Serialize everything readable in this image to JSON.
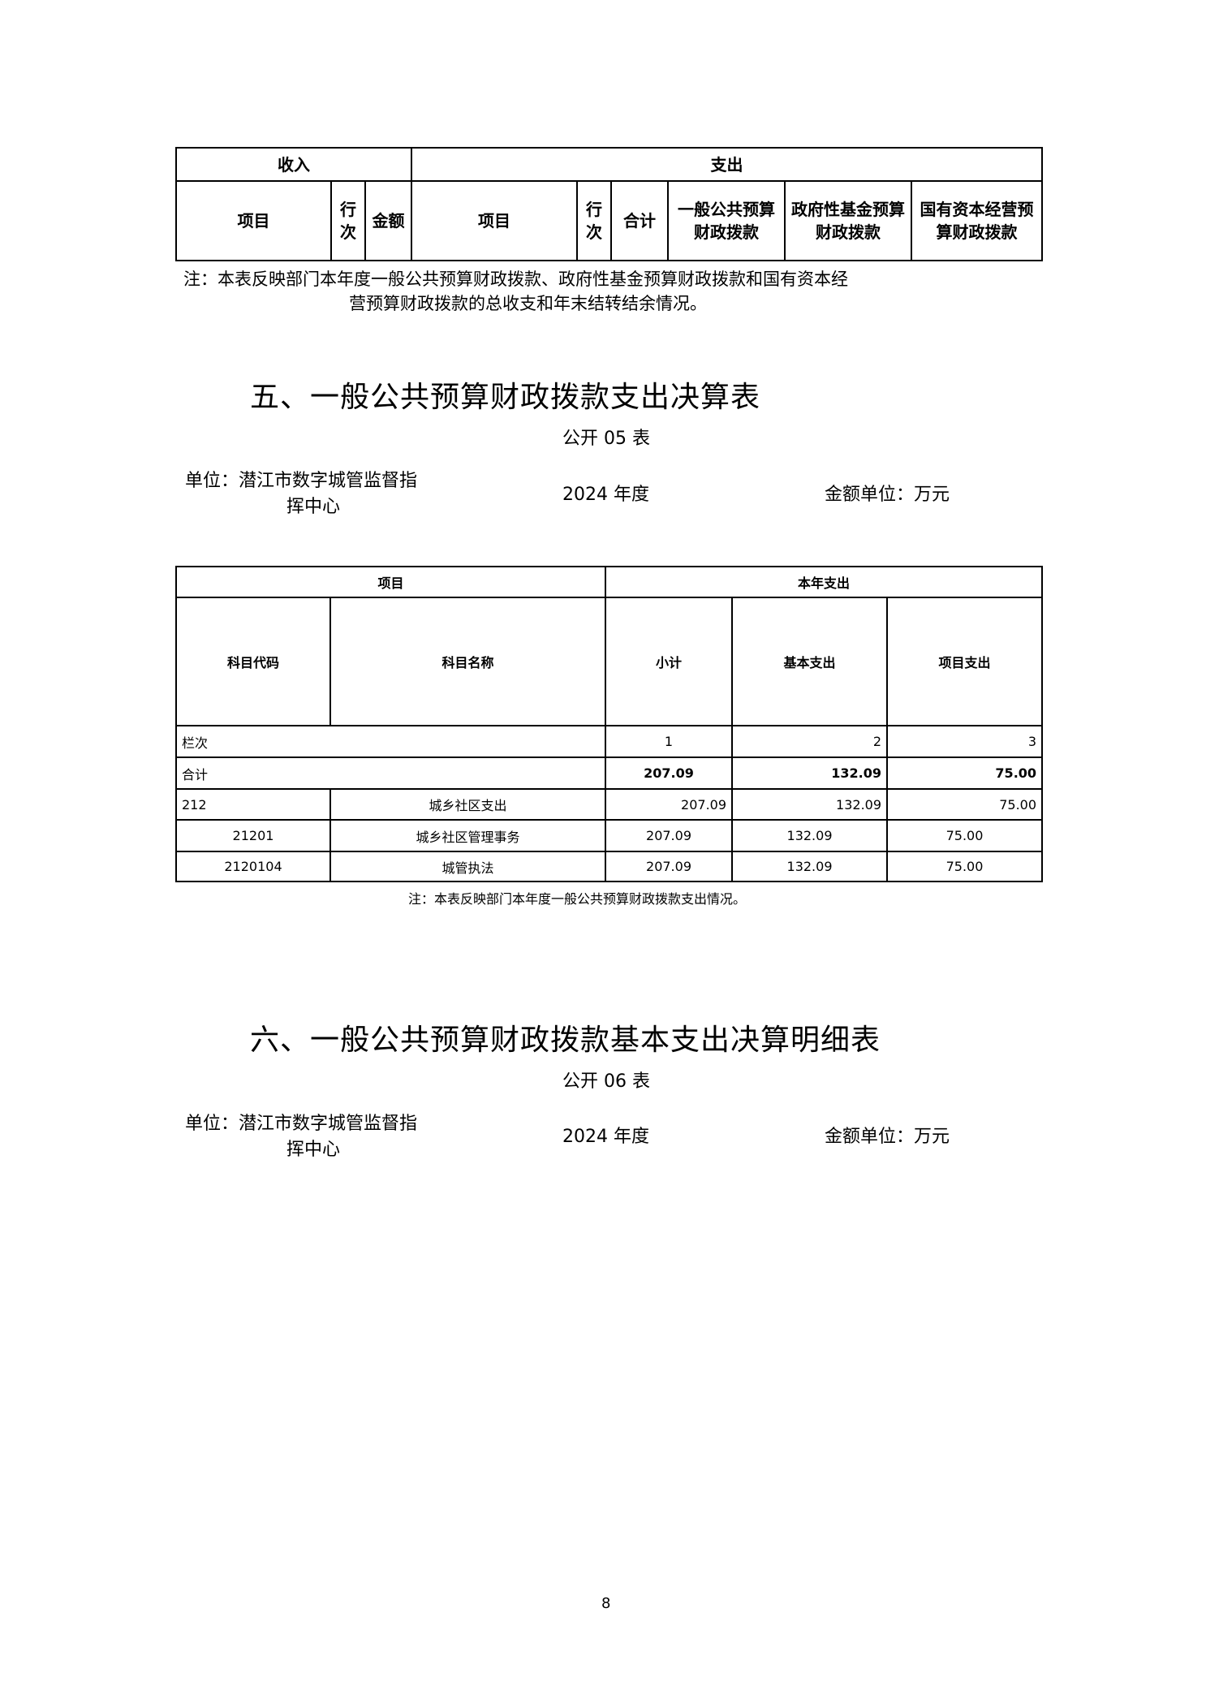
{
  "table4": {
    "income": "收入",
    "expense": "支出",
    "h_item": "项目",
    "h_row": "行次",
    "h_amount": "金额",
    "h_item2": "项目",
    "h_row2": "行次",
    "h_total": "合计",
    "h_general": "一般公共预算财政拨款",
    "h_gov": "政府性基金预算财政拨款",
    "h_state": "国有资本经营预算财政拨款",
    "note1": "注：本表反映部门本年度一般公共预算财政拨款、政府性基金预算财政拨款和国有资本经",
    "note2": "营预算财政拨款的总收支和年末结转结余情况。"
  },
  "section5": {
    "title": "五、一般公共预算财政拨款支出决算表",
    "code": "公开 05 表",
    "unit": "单位：潜江市数字城管监督指",
    "unit2": "挥中心",
    "year": "2024 年度",
    "money_unit": "金额单位：万元",
    "table": {
      "h_item": "项目",
      "h_year": "本年支出",
      "h_code": "科目代码",
      "h_name": "科目名称",
      "h_sub": "小计",
      "h_basic": "基本支出",
      "h_project": "项目支出",
      "col_label": "栏次",
      "col1": "1",
      "col2": "2",
      "col3": "3",
      "total_label": "合计",
      "total": [
        "207.09",
        "132.09",
        "75.00"
      ],
      "rows": [
        {
          "code": "212",
          "name": "城乡社区支出",
          "v": [
            "207.09",
            "132.09",
            "75.00"
          ]
        },
        {
          "code": "21201",
          "name": "城乡社区管理事务",
          "v": [
            "207.09",
            "132.09",
            "75.00"
          ]
        },
        {
          "code": "2120104",
          "name": "城管执法",
          "v": [
            "207.09",
            "132.09",
            "75.00"
          ]
        }
      ]
    },
    "note": "注：本表反映部门本年度一般公共预算财政拨款支出情况。"
  },
  "section6": {
    "title": "六、一般公共预算财政拨款基本支出决算明细表",
    "code": "公开 06 表",
    "unit": "单位：潜江市数字城管监督指",
    "unit2": "挥中心",
    "year": "2024 年度",
    "money_unit": "金额单位：万元"
  },
  "page_number": "8"
}
